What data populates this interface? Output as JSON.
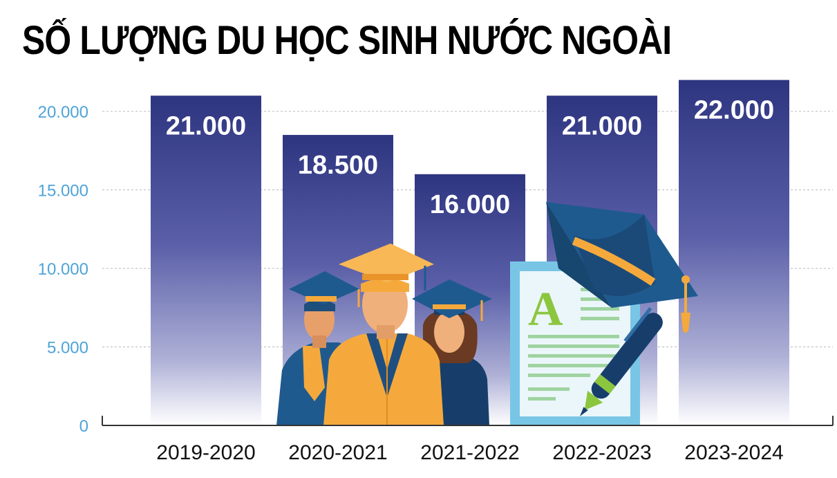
{
  "title": "SỐ LƯỢNG DU HỌC SINH NƯỚC NGOÀI",
  "chart_data": {
    "type": "bar",
    "title": "SỐ LƯỢNG DU HỌC SINH NƯỚC NGOÀI",
    "xlabel": "",
    "ylabel": "",
    "categories": [
      "2019-2020",
      "2020-2021",
      "2021-2022",
      "2022-2023",
      "2023-2024"
    ],
    "values": [
      21000,
      18500,
      16000,
      21000,
      22000
    ],
    "data_labels": [
      "21.000",
      "18.500",
      "16.000",
      "21.000",
      "22.000"
    ],
    "yticks": [
      0,
      5000,
      10000,
      15000,
      20000
    ],
    "ytick_labels": [
      "0",
      "5.000",
      "10.000",
      "15.000",
      "20.000"
    ],
    "ylim": [
      0,
      22000
    ],
    "grid": true,
    "colors": {
      "bar_top": "#2e3580",
      "bar_bottom": "#ffffff",
      "tick_label": "#4fa3d9",
      "grid": "#b8b8b8"
    },
    "illustrations": [
      "graduates-illustration",
      "graduation-cap-icon",
      "diploma-document-icon",
      "pen-icon"
    ]
  }
}
